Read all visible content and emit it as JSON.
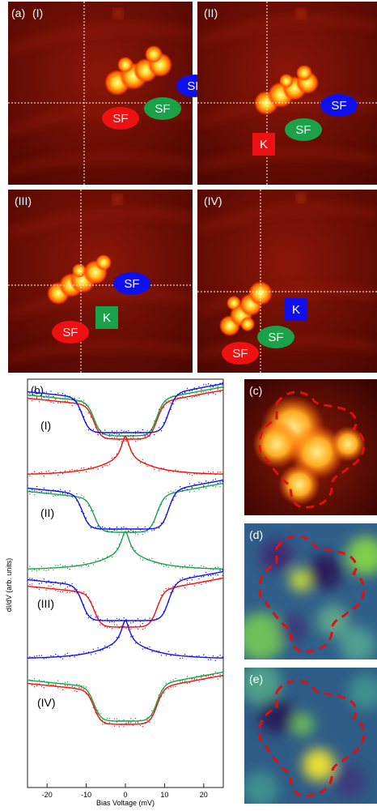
{
  "panel_a": {
    "label": "(a)",
    "sub": [
      {
        "roman": "(I)",
        "tags": [
          {
            "text": "SF",
            "color": "blue"
          },
          {
            "text": "SF",
            "color": "green"
          },
          {
            "text": "SF",
            "color": "red"
          }
        ]
      },
      {
        "roman": "(II)",
        "tags": [
          {
            "text": "SF",
            "color": "blue"
          },
          {
            "text": "SF",
            "color": "green"
          },
          {
            "text": "K",
            "color": "red"
          }
        ]
      },
      {
        "roman": "(III)",
        "tags": [
          {
            "text": "SF",
            "color": "blue"
          },
          {
            "text": "K",
            "color": "green"
          },
          {
            "text": "SF",
            "color": "red"
          }
        ]
      },
      {
        "roman": "(IV)",
        "tags": [
          {
            "text": "K",
            "color": "blue"
          },
          {
            "text": "SF",
            "color": "green"
          },
          {
            "text": "SF",
            "color": "red"
          }
        ]
      }
    ]
  },
  "panel_b": {
    "label": "(b)",
    "row_labels": [
      "(I)",
      "(II)",
      "(III)",
      "(IV)"
    ]
  },
  "panel_c": {
    "label": "(c)"
  },
  "panel_d": {
    "label": "(d)"
  },
  "panel_e": {
    "label": "(e)"
  },
  "colors": {
    "red": "#ee1111",
    "green": "#1aa14a",
    "blue": "#1010ee",
    "dashed_outline": "#dd1111"
  },
  "chart_data": {
    "type": "line",
    "xlabel": "Bias Voltage (mV)",
    "ylabel": "dI/dV (arb. units)",
    "xlim": [
      -25,
      25
    ],
    "xticks": [
      "-20",
      "-10",
      "0",
      "10",
      "20"
    ],
    "series": [
      {
        "row": "(I)",
        "color": "red",
        "shape": "step",
        "gap": [
          -8,
          8
        ]
      },
      {
        "row": "(I)",
        "color": "green",
        "shape": "step",
        "gap": [
          -8,
          8
        ]
      },
      {
        "row": "(I)",
        "color": "blue",
        "shape": "step",
        "gap": [
          -11,
          11
        ]
      },
      {
        "row": "(II)",
        "color": "red",
        "shape": "kondo_peak",
        "peak_x": 0
      },
      {
        "row": "(II)",
        "color": "green",
        "shape": "step",
        "gap": [
          -8,
          8
        ]
      },
      {
        "row": "(II)",
        "color": "blue",
        "shape": "step",
        "gap": [
          -11,
          11
        ]
      },
      {
        "row": "(III)",
        "color": "green",
        "shape": "kondo_peak",
        "peak_x": 0
      },
      {
        "row": "(III)",
        "color": "red",
        "shape": "step",
        "gap": [
          -8,
          8
        ]
      },
      {
        "row": "(III)",
        "color": "blue",
        "shape": "step",
        "gap": [
          -11,
          11
        ]
      },
      {
        "row": "(IV)",
        "color": "blue",
        "shape": "kondo_peak",
        "peak_x": 0
      },
      {
        "row": "(IV)",
        "color": "green",
        "shape": "step",
        "gap": [
          -8,
          8
        ]
      },
      {
        "row": "(IV)",
        "color": "red",
        "shape": "step",
        "gap": [
          -8,
          8
        ]
      }
    ]
  }
}
